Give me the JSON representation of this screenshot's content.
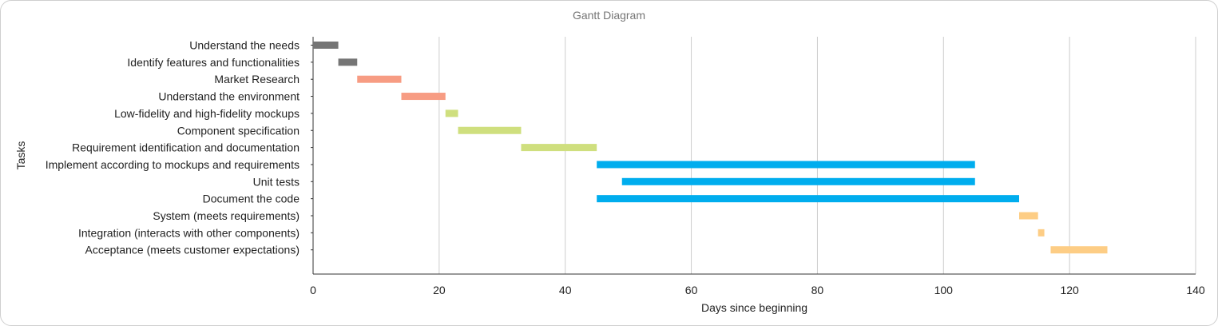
{
  "chart_data": {
    "type": "bar",
    "title": "Gantt Diagram",
    "xlabel": "Days since beginning",
    "ylabel": "Tasks",
    "xlim": [
      0,
      140
    ],
    "xticks": [
      "0",
      "20",
      "40",
      "60",
      "80",
      "100",
      "120",
      "140"
    ],
    "grid": true,
    "tasks": [
      {
        "label": "Understand the needs",
        "start": 0,
        "end": 4,
        "color": "#757575"
      },
      {
        "label": "Identify features and functionalities",
        "start": 4,
        "end": 7,
        "color": "#757575"
      },
      {
        "label": "Market Research",
        "start": 7,
        "end": 14,
        "color": "#F79C83"
      },
      {
        "label": "Understand the environment",
        "start": 14,
        "end": 21,
        "color": "#F79C83"
      },
      {
        "label": "Low-fidelity and high-fidelity mockups",
        "start": 21,
        "end": 23,
        "color": "#CFDF7E"
      },
      {
        "label": "Component specification",
        "start": 23,
        "end": 33,
        "color": "#CFDF7E"
      },
      {
        "label": "Requirement identification and documentation",
        "start": 33,
        "end": 45,
        "color": "#CFDF7E"
      },
      {
        "label": "Implement according to mockups and requirements",
        "start": 45,
        "end": 105,
        "color": "#00ADEE"
      },
      {
        "label": "Unit tests",
        "start": 49,
        "end": 105,
        "color": "#00ADEE"
      },
      {
        "label": "Document the code",
        "start": 45,
        "end": 112,
        "color": "#00ADEE"
      },
      {
        "label": "System (meets requirements)",
        "start": 112,
        "end": 115,
        "color": "#FDCD85"
      },
      {
        "label": "Integration (interacts with other components)",
        "start": 115,
        "end": 116,
        "color": "#FDCD85"
      },
      {
        "label": "Acceptance (meets customer expectations)",
        "start": 117,
        "end": 126,
        "color": "#FDCD85"
      }
    ]
  }
}
